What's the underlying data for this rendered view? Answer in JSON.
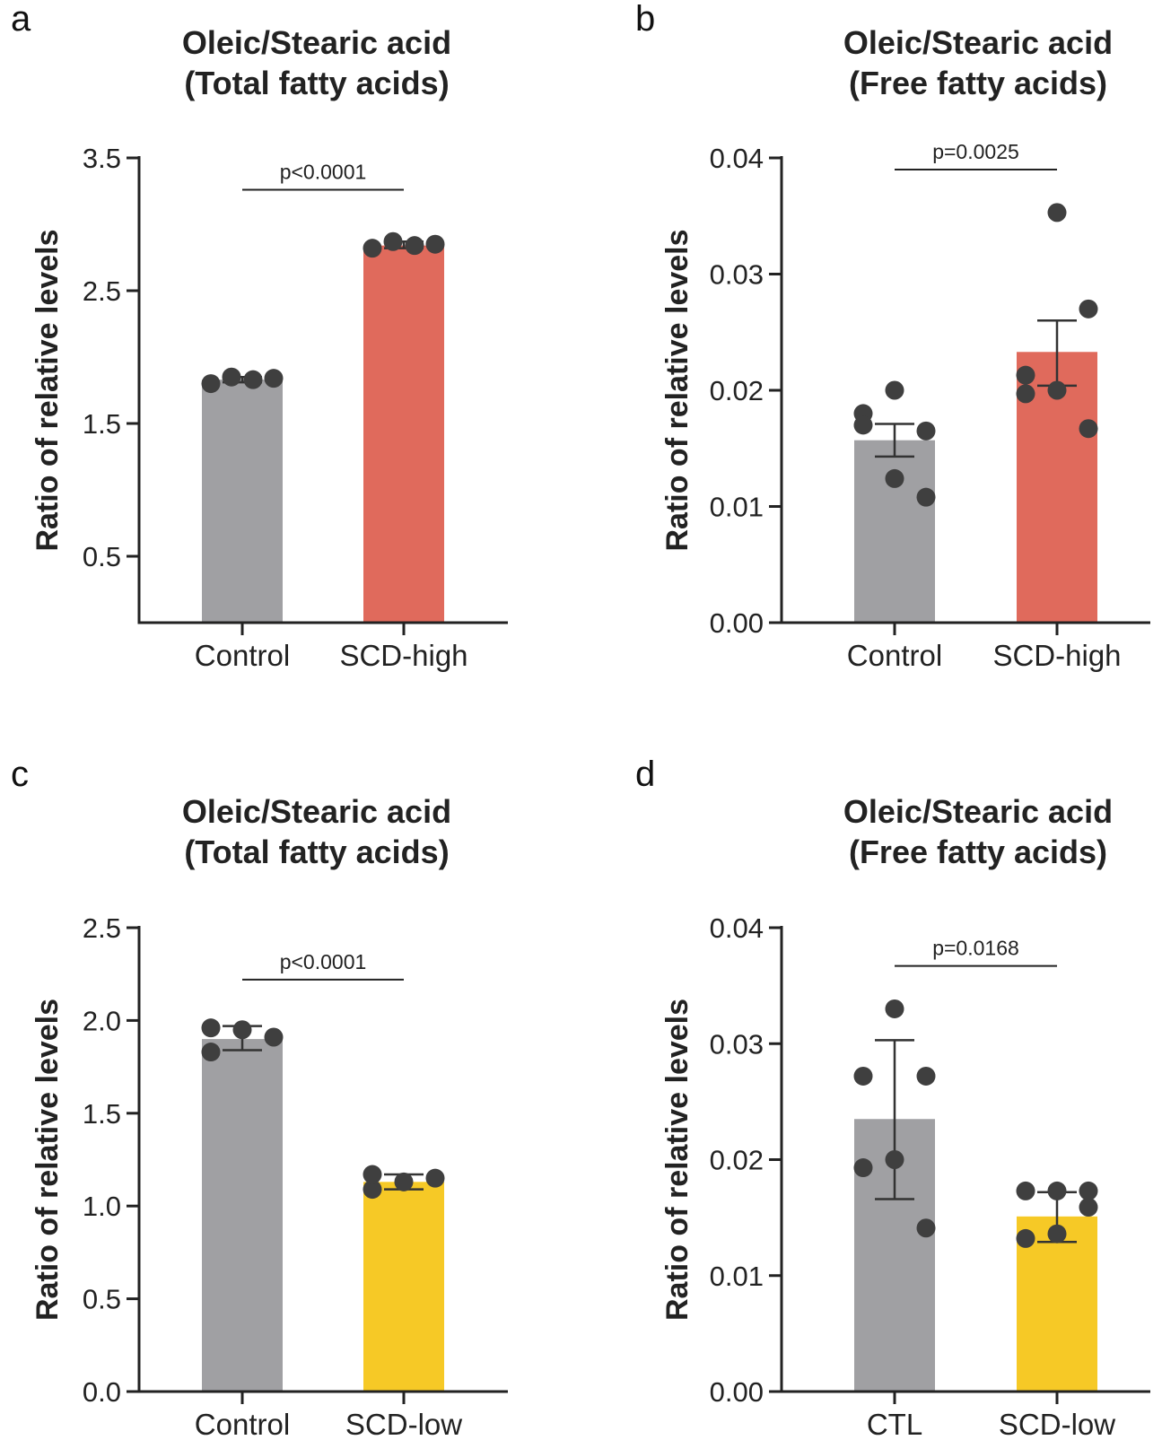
{
  "colors": {
    "control": "#a0a0a3",
    "scd_high": "#e06a5c",
    "scd_low": "#f6c926",
    "point": "#3f3f3f"
  },
  "chart_data": [
    {
      "panel": "a",
      "type": "bar",
      "title": [
        "Oleic/Stearic acid",
        "(Total fatty acids)"
      ],
      "ylabel": "Ratio of relative levels",
      "ylim": [
        0,
        3.5
      ],
      "yticks": [
        0.5,
        1.5,
        2.5,
        3.5
      ],
      "tick_labels": [
        "0.5",
        "1.5",
        "2.5",
        "3.5"
      ],
      "categories": [
        "Control",
        "SCD-high"
      ],
      "bar_colors": [
        "control",
        "scd_high"
      ],
      "means": [
        1.83,
        2.84
      ],
      "errors": [
        [
          1.81,
          1.85
        ],
        [
          2.82,
          2.87
        ]
      ],
      "points": [
        [
          1.8,
          1.85,
          1.83,
          1.84
        ],
        [
          2.82,
          2.87,
          2.84,
          2.85
        ]
      ],
      "annotation": {
        "text": "p<0.0001",
        "y": 3.26
      }
    },
    {
      "panel": "b",
      "type": "bar",
      "title": [
        "Oleic/Stearic acid",
        "(Free fatty acids)"
      ],
      "ylabel": "Ratio of relative levels",
      "ylim": [
        0,
        0.04
      ],
      "yticks": [
        0,
        0.01,
        0.02,
        0.03,
        0.04
      ],
      "tick_labels": [
        "0.00",
        "0.01",
        "0.02",
        "0.03",
        "0.04"
      ],
      "categories": [
        "Control",
        "SCD-high"
      ],
      "bar_colors": [
        "control",
        "scd_high"
      ],
      "means": [
        0.0157,
        0.0233
      ],
      "errors": [
        [
          0.0143,
          0.0171
        ],
        [
          0.0204,
          0.026
        ]
      ],
      "points": [
        [
          0.018,
          0.02,
          0.0165,
          0.017,
          0.0124,
          0.0108
        ],
        [
          0.0213,
          0.0353,
          0.027,
          0.0197,
          0.02,
          0.0167
        ]
      ],
      "annotation": {
        "text": "p=0.0025",
        "y": 0.039
      }
    },
    {
      "panel": "c",
      "type": "bar",
      "title": [
        "Oleic/Stearic acid",
        "(Total fatty acids)"
      ],
      "ylabel": "Ratio of relative levels",
      "ylim": [
        0,
        2.5
      ],
      "yticks": [
        0,
        0.5,
        1.0,
        1.5,
        2.0,
        2.5
      ],
      "tick_labels": [
        "0.0",
        "0.5",
        "1.0",
        "1.5",
        "2.0",
        "2.5"
      ],
      "categories": [
        "Control",
        "SCD-low"
      ],
      "bar_colors": [
        "control",
        "scd_low"
      ],
      "means": [
        1.9,
        1.13
      ],
      "errors": [
        [
          1.84,
          1.97
        ],
        [
          1.09,
          1.17
        ]
      ],
      "points": [
        [
          1.96,
          1.83,
          1.95,
          1.91
        ],
        [
          1.09,
          1.17,
          1.13,
          1.15
        ]
      ],
      "annotation": {
        "text": "p<0.0001",
        "y": 2.22
      }
    },
    {
      "panel": "d",
      "type": "bar",
      "title": [
        "Oleic/Stearic acid",
        "(Free fatty acids)"
      ],
      "ylabel": "Ratio of relative levels",
      "ylim": [
        0,
        0.04
      ],
      "yticks": [
        0,
        0.01,
        0.02,
        0.03,
        0.04
      ],
      "tick_labels": [
        "0.00",
        "0.01",
        "0.02",
        "0.03",
        "0.04"
      ],
      "categories": [
        "CTL",
        "SCD-low"
      ],
      "bar_colors": [
        "control",
        "scd_low"
      ],
      "means": [
        0.0235,
        0.0151
      ],
      "errors": [
        [
          0.0166,
          0.0303
        ],
        [
          0.0129,
          0.0172
        ]
      ],
      "points": [
        [
          0.0272,
          0.033,
          0.0272,
          0.0193,
          0.02,
          0.0141
        ],
        [
          0.0173,
          0.0173,
          0.0159,
          0.0132,
          0.0136,
          0.0173
        ]
      ],
      "annotation": {
        "text": "p=0.0168",
        "y": 0.0367
      }
    }
  ]
}
